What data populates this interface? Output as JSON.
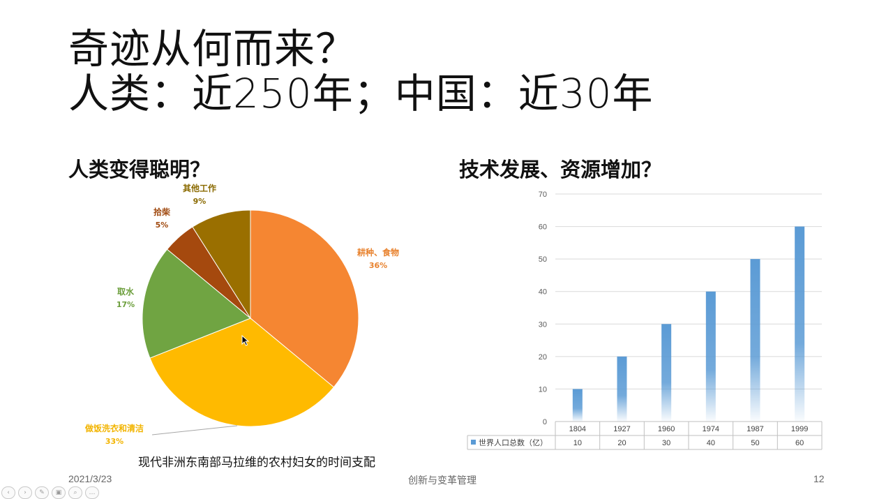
{
  "slide": {
    "title_line1": "奇迹从何而来？",
    "title_line2": "人类：近250年；中国：近30年",
    "left_heading": "人类变得聪明？",
    "right_heading": "技术发展、资源增加？",
    "pie_caption": "现代非洲东南部马拉维的农村妇女的时间支配",
    "footer": {
      "date": "2021/3/23",
      "center": "创新与变革管理",
      "page": "12"
    }
  },
  "toolbar": {
    "buttons": [
      {
        "name": "prev-slide-button",
        "glyph": "‹"
      },
      {
        "name": "next-slide-button",
        "glyph": "›"
      },
      {
        "name": "pen-tool-button",
        "glyph": "✎"
      },
      {
        "name": "slides-overview-button",
        "glyph": "▣"
      },
      {
        "name": "zoom-button",
        "glyph": "⌕"
      },
      {
        "name": "more-options-button",
        "glyph": "…"
      }
    ]
  },
  "chart_data": [
    {
      "type": "pie",
      "slices": [
        {
          "label": "耕种、食物",
          "value": 36,
          "pct": "36%",
          "color": "#f58632",
          "label_color": "#e8822e"
        },
        {
          "label": "做饭洗衣和清洁",
          "value": 33,
          "pct": "33%",
          "color": "#ffba00",
          "label_color": "#f2b400"
        },
        {
          "label": "取水",
          "value": 17,
          "pct": "17%",
          "color": "#70a442",
          "label_color": "#6c9e3c"
        },
        {
          "label": "拾柴",
          "value": 5,
          "pct": "5%",
          "color": "#a5490e",
          "label_color": "#a04a10"
        },
        {
          "label": "其他工作",
          "value": 9,
          "pct": "9%",
          "color": "#9a6f00",
          "label_color": "#8a6a00"
        }
      ]
    },
    {
      "type": "bar",
      "categories": [
        "1804",
        "1927",
        "1960",
        "1974",
        "1987",
        "1999"
      ],
      "series": [
        {
          "name": "世界人口总数（亿）",
          "values": [
            10,
            20,
            30,
            40,
            50,
            60
          ],
          "color": "#5b9bd5"
        }
      ],
      "ylim": [
        0,
        70
      ],
      "yticks": [
        "0",
        "10",
        "20",
        "30",
        "40",
        "50",
        "60",
        "70"
      ],
      "grid": true,
      "data_table": true
    }
  ]
}
